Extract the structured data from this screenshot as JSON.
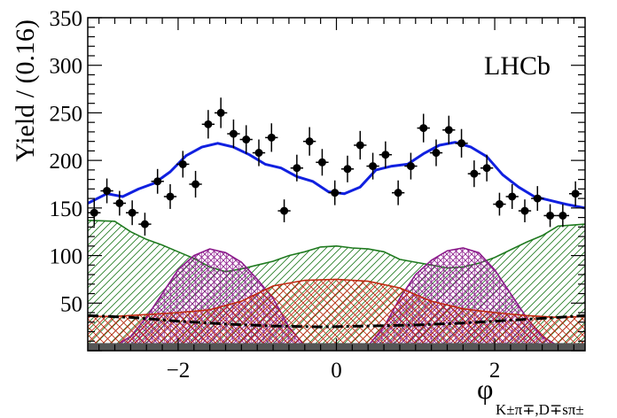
{
  "chart_data": {
    "type": "line",
    "title": "",
    "annotation": "LHCb",
    "xlabel": "φ",
    "xlabel_subscript": "K±π∓,D∓sπ±",
    "ylabel": "Yield / (0.16)",
    "xlim": [
      -3.1416,
      3.1416
    ],
    "ylim": [
      0,
      350
    ],
    "x_ticks": [
      -2,
      0,
      2
    ],
    "y_ticks": [
      50,
      100,
      150,
      200,
      250,
      300,
      350
    ],
    "grid": false,
    "legend": "none",
    "data_points": {
      "x": [
        -3.06,
        -2.9,
        -2.74,
        -2.58,
        -2.42,
        -2.26,
        -2.1,
        -1.94,
        -1.78,
        -1.62,
        -1.46,
        -1.3,
        -1.14,
        -0.98,
        -0.82,
        -0.66,
        -0.5,
        -0.34,
        -0.18,
        -0.02,
        0.14,
        0.3,
        0.46,
        0.62,
        0.78,
        0.94,
        1.1,
        1.26,
        1.42,
        1.58,
        1.74,
        1.9,
        2.06,
        2.22,
        2.38,
        2.54,
        2.7,
        2.86,
        3.02
      ],
      "y": [
        145,
        168,
        155,
        145,
        133,
        178,
        162,
        196,
        175,
        238,
        250,
        228,
        222,
        208,
        224,
        147,
        192,
        220,
        198,
        166,
        191,
        216,
        194,
        206,
        166,
        194,
        234,
        208,
        232,
        218,
        186,
        192,
        154,
        162,
        147,
        160,
        142,
        142,
        165
      ],
      "err": [
        14,
        13,
        13,
        13,
        12,
        13,
        13,
        14,
        14,
        15,
        16,
        15,
        15,
        14,
        15,
        12,
        14,
        15,
        14,
        13,
        14,
        15,
        14,
        14,
        13,
        14,
        15,
        14,
        15,
        15,
        14,
        14,
        12,
        13,
        12,
        13,
        12,
        12,
        13
      ],
      "color": "#000000"
    },
    "total_fit": {
      "x": [
        -3.14,
        -2.9,
        -2.7,
        -2.5,
        -2.3,
        -2.1,
        -1.9,
        -1.7,
        -1.5,
        -1.3,
        -1.1,
        -0.9,
        -0.7,
        -0.5,
        -0.3,
        -0.1,
        0.1,
        0.3,
        0.5,
        0.7,
        0.9,
        1.1,
        1.3,
        1.5,
        1.7,
        1.9,
        2.1,
        2.3,
        2.5,
        2.7,
        2.9,
        3.14
      ],
      "y": [
        155,
        165,
        162,
        170,
        176,
        188,
        205,
        214,
        218,
        214,
        206,
        196,
        192,
        183,
        178,
        167,
        165,
        172,
        190,
        194,
        196,
        207,
        216,
        219,
        214,
        204,
        185,
        172,
        162,
        158,
        154,
        150
      ],
      "color": "#1020e0"
    },
    "components": [
      {
        "type": "area",
        "color": "#1f7a1f",
        "pattern": "diagonal-hatch",
        "x": [
          -3.14,
          -2.8,
          -2.6,
          -2.4,
          -2.2,
          -2.0,
          -1.8,
          -1.6,
          -1.4,
          -1.2,
          -1.0,
          -0.8,
          -0.6,
          -0.4,
          -0.2,
          0.0,
          0.2,
          0.4,
          0.6,
          0.8,
          1.0,
          1.2,
          1.4,
          1.6,
          1.8,
          2.0,
          2.2,
          2.4,
          2.6,
          2.8,
          3.14
        ],
        "y": [
          137,
          136,
          125,
          117,
          111,
          104,
          97,
          88,
          83,
          86,
          90,
          94,
          100,
          104,
          109,
          110,
          108,
          107,
          104,
          96,
          93,
          90,
          87,
          88,
          92,
          98,
          106,
          114,
          121,
          131,
          133
        ]
      },
      {
        "type": "area",
        "color": "#8b1a8b",
        "pattern": "cross-hatch",
        "x": [
          -2.8,
          -2.6,
          -2.4,
          -2.2,
          -2.0,
          -1.8,
          -1.6,
          -1.4,
          -1.2,
          -1.0,
          -0.8,
          -0.6,
          -0.4,
          0.4,
          0.6,
          0.8,
          1.0,
          1.2,
          1.4,
          1.6,
          1.8,
          2.0,
          2.2,
          2.4,
          2.6,
          2.8
        ],
        "y": [
          5,
          15,
          35,
          60,
          85,
          100,
          107,
          103,
          93,
          75,
          55,
          25,
          5,
          5,
          25,
          55,
          80,
          95,
          105,
          108,
          103,
          85,
          60,
          35,
          15,
          5
        ]
      },
      {
        "type": "area",
        "color": "#c0280f",
        "pattern": "cross-hatch",
        "x": [
          -3.14,
          -2.8,
          -2.4,
          -2.0,
          -1.6,
          -1.2,
          -0.8,
          -0.4,
          0.0,
          0.4,
          0.8,
          1.2,
          1.6,
          2.0,
          2.4,
          2.8,
          3.14
        ],
        "y": [
          36,
          36,
          38,
          40,
          43,
          52,
          68,
          74,
          75,
          73,
          66,
          52,
          44,
          40,
          37,
          35,
          36
        ]
      },
      {
        "type": "line",
        "color": "#000000",
        "style": "dash-dot",
        "x": [
          -3.14,
          -2.6,
          -2.0,
          -1.4,
          -0.8,
          -0.2,
          0.4,
          1.0,
          1.6,
          2.2,
          2.8,
          3.14
        ],
        "y": [
          37,
          35,
          31,
          28,
          26,
          25,
          26,
          27,
          29,
          32,
          35,
          37
        ]
      },
      {
        "type": "area",
        "color": "#555555",
        "pattern": "solid",
        "x": [
          -3.14,
          3.14
        ],
        "y": [
          8,
          8
        ]
      }
    ]
  }
}
